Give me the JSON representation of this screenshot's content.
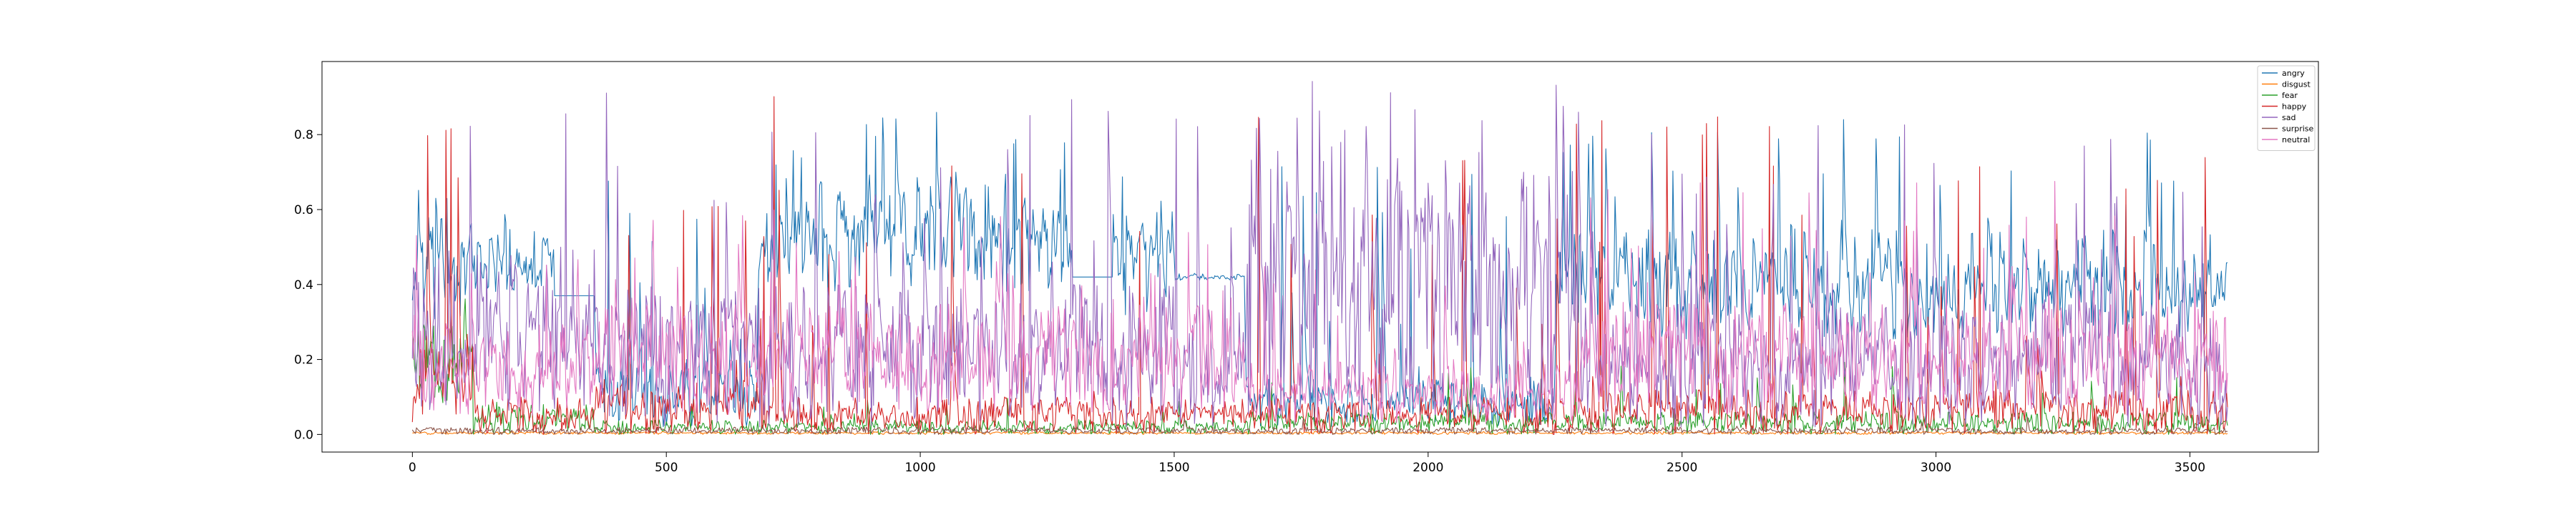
{
  "chart_data": {
    "type": "line",
    "title": "",
    "xlabel": "",
    "ylabel": "",
    "xlim": [
      -178,
      3753
    ],
    "ylim": [
      -0.047,
      0.995
    ],
    "xticks": [
      0,
      500,
      1000,
      1500,
      2000,
      2500,
      3000,
      3500
    ],
    "xtick_labels": [
      "0",
      "500",
      "1000",
      "1500",
      "2000",
      "2500",
      "3000",
      "3500"
    ],
    "yticks": [
      0.0,
      0.2,
      0.4,
      0.6,
      0.8
    ],
    "ytick_labels": [
      "0.0",
      "0.2",
      "0.4",
      "0.6",
      "0.8"
    ],
    "legend_position": "top-right",
    "n_points": 3576,
    "series": [
      {
        "name": "angry",
        "color": "#1f77b4",
        "segments": [
          {
            "from": 0,
            "to": 120,
            "low": 0.3,
            "high": 0.58,
            "spike": 0.72,
            "density": 0.25
          },
          {
            "from": 120,
            "to": 280,
            "low": 0.38,
            "high": 0.55,
            "spike": 0.72,
            "density": 0.12
          },
          {
            "from": 280,
            "to": 360,
            "low": 0.36,
            "high": 0.38,
            "spike": 0.38,
            "density": 0.0
          },
          {
            "from": 360,
            "to": 680,
            "low": 0.02,
            "high": 0.2,
            "spike": 0.86,
            "density": 0.18
          },
          {
            "from": 680,
            "to": 1300,
            "low": 0.38,
            "high": 0.72,
            "spike": 0.88,
            "density": 0.35
          },
          {
            "from": 1300,
            "to": 1380,
            "low": 0.41,
            "high": 0.43,
            "spike": 0.43,
            "density": 0.0
          },
          {
            "from": 1380,
            "to": 1500,
            "low": 0.3,
            "high": 0.6,
            "spike": 0.72,
            "density": 0.3
          },
          {
            "from": 1500,
            "to": 1640,
            "low": 0.41,
            "high": 0.43,
            "spike": 0.45,
            "density": 0.05
          },
          {
            "from": 1640,
            "to": 2250,
            "low": 0.02,
            "high": 0.15,
            "spike": 0.72,
            "density": 0.12
          },
          {
            "from": 2250,
            "to": 3576,
            "low": 0.25,
            "high": 0.55,
            "spike": 0.85,
            "density": 0.3
          }
        ]
      },
      {
        "name": "disgust",
        "color": "#ff7f0e",
        "segments": [
          {
            "from": 0,
            "to": 3576,
            "low": 0.0,
            "high": 0.008,
            "spike": 0.02,
            "density": 0.01
          }
        ]
      },
      {
        "name": "fear",
        "color": "#2ca02c",
        "segments": [
          {
            "from": 0,
            "to": 120,
            "low": 0.08,
            "high": 0.32,
            "spike": 0.38,
            "density": 0.3
          },
          {
            "from": 120,
            "to": 360,
            "low": 0.0,
            "high": 0.08,
            "spike": 0.14,
            "density": 0.1
          },
          {
            "from": 360,
            "to": 1640,
            "low": 0.0,
            "high": 0.04,
            "spike": 0.1,
            "density": 0.08
          },
          {
            "from": 1640,
            "to": 3576,
            "low": 0.0,
            "high": 0.06,
            "spike": 0.2,
            "density": 0.12
          }
        ]
      },
      {
        "name": "happy",
        "color": "#d62728",
        "segments": [
          {
            "from": 0,
            "to": 120,
            "low": 0.02,
            "high": 0.25,
            "spike": 0.84,
            "density": 0.2
          },
          {
            "from": 120,
            "to": 360,
            "low": 0.0,
            "high": 0.1,
            "spike": 0.5,
            "density": 0.08
          },
          {
            "from": 360,
            "to": 700,
            "low": 0.0,
            "high": 0.15,
            "spike": 0.78,
            "density": 0.15
          },
          {
            "from": 700,
            "to": 1640,
            "low": 0.0,
            "high": 0.1,
            "spike": 0.92,
            "density": 0.06
          },
          {
            "from": 1640,
            "to": 2300,
            "low": 0.0,
            "high": 0.1,
            "spike": 0.95,
            "density": 0.08
          },
          {
            "from": 2300,
            "to": 3576,
            "low": 0.0,
            "high": 0.12,
            "spike": 0.85,
            "density": 0.15
          }
        ]
      },
      {
        "name": "sad",
        "color": "#9467bd",
        "segments": [
          {
            "from": 0,
            "to": 360,
            "low": 0.05,
            "high": 0.5,
            "spike": 0.91,
            "density": 0.25
          },
          {
            "from": 360,
            "to": 1640,
            "low": 0.02,
            "high": 0.4,
            "spike": 0.92,
            "density": 0.25
          },
          {
            "from": 1640,
            "to": 2300,
            "low": 0.05,
            "high": 0.75,
            "spike": 0.95,
            "density": 0.4
          },
          {
            "from": 2300,
            "to": 3576,
            "low": 0.02,
            "high": 0.35,
            "spike": 0.85,
            "density": 0.25
          }
        ]
      },
      {
        "name": "surprise",
        "color": "#8c564b",
        "segments": [
          {
            "from": 0,
            "to": 3576,
            "low": 0.0,
            "high": 0.02,
            "spike": 0.05,
            "density": 0.02
          }
        ]
      },
      {
        "name": "neutral",
        "color": "#e377c2",
        "segments": [
          {
            "from": 0,
            "to": 360,
            "low": 0.05,
            "high": 0.3,
            "spike": 0.55,
            "density": 0.2
          },
          {
            "from": 360,
            "to": 1640,
            "low": 0.05,
            "high": 0.35,
            "spike": 0.6,
            "density": 0.2
          },
          {
            "from": 1640,
            "to": 2300,
            "low": 0.02,
            "high": 0.2,
            "spike": 0.45,
            "density": 0.12
          },
          {
            "from": 2300,
            "to": 3576,
            "low": 0.05,
            "high": 0.35,
            "spike": 0.68,
            "density": 0.25
          }
        ]
      }
    ]
  }
}
